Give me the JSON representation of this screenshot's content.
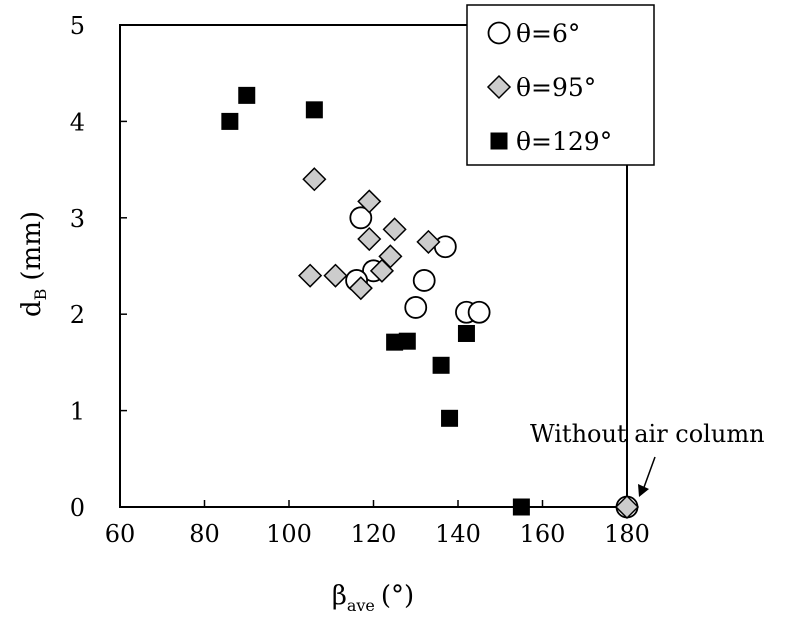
{
  "chart_data": {
    "type": "scatter",
    "xlabel": {
      "main": "β",
      "sub": "ave",
      "unit": "(°)"
    },
    "ylabel": {
      "main": "d",
      "sub": "B",
      "unit": "(mm)"
    },
    "xlim": [
      60,
      180
    ],
    "ylim": [
      0,
      5
    ],
    "xticks": [
      "60",
      "80",
      "100",
      "120",
      "140",
      "160",
      "180"
    ],
    "yticks": [
      "0",
      "1",
      "2",
      "3",
      "4",
      "5"
    ],
    "grid": false,
    "legend_position": "top-right",
    "series": [
      {
        "name": "θ=6°",
        "marker": "circle",
        "fill": "#ffffff",
        "points": [
          [
            117,
            3.0
          ],
          [
            137,
            2.7
          ],
          [
            120,
            2.45
          ],
          [
            116,
            2.35
          ],
          [
            132,
            2.35
          ],
          [
            130,
            2.07
          ],
          [
            142,
            2.02
          ],
          [
            145,
            2.02
          ],
          [
            180,
            0
          ]
        ]
      },
      {
        "name": "θ=95°",
        "marker": "diamond",
        "fill": "#cccccc",
        "points": [
          [
            106,
            3.4
          ],
          [
            119,
            3.17
          ],
          [
            119,
            2.78
          ],
          [
            125,
            2.88
          ],
          [
            133,
            2.75
          ],
          [
            124,
            2.6
          ],
          [
            122,
            2.45
          ],
          [
            105,
            2.4
          ],
          [
            111,
            2.4
          ],
          [
            117,
            2.27
          ],
          [
            180,
            0
          ]
        ]
      },
      {
        "name": "θ=129°",
        "marker": "square",
        "fill": "#000000",
        "points": [
          [
            86,
            4.0
          ],
          [
            90,
            4.27
          ],
          [
            106,
            4.12
          ],
          [
            125,
            1.71
          ],
          [
            128,
            1.72
          ],
          [
            142,
            1.8
          ],
          [
            136,
            1.47
          ],
          [
            138,
            0.92
          ],
          [
            155,
            0
          ]
        ]
      }
    ],
    "annotations": [
      {
        "text": "Without air column",
        "target": [
          180,
          0
        ]
      }
    ]
  }
}
